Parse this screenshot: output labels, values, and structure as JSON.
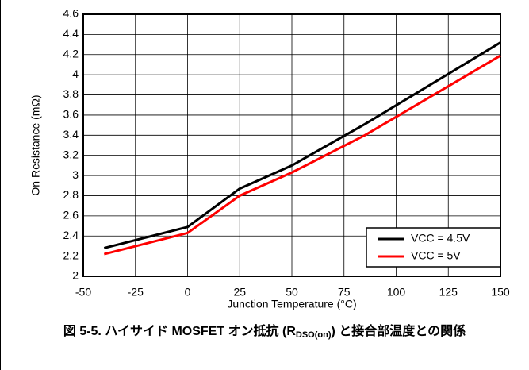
{
  "chart_data": {
    "type": "line",
    "xlabel": "Junction Temperature (°C)",
    "ylabel": "On Resistance (mΩ)",
    "xlim": [
      -50,
      150
    ],
    "xticks": [
      -50,
      -25,
      0,
      25,
      50,
      75,
      100,
      125,
      150
    ],
    "ylim": [
      2,
      4.6
    ],
    "yticks": [
      2,
      2.2,
      2.4,
      2.6,
      2.8,
      3,
      3.2,
      3.4,
      3.6,
      3.8,
      4,
      4.2,
      4.4,
      4.6
    ],
    "grid": true,
    "legend": "lower right",
    "x": [
      -40,
      0,
      25,
      50,
      85,
      150
    ],
    "series": [
      {
        "name": "VCC = 4.5V",
        "color": "#000000",
        "values": [
          2.28,
          2.49,
          2.87,
          3.1,
          3.51,
          4.32
        ]
      },
      {
        "name": "VCC = 5V",
        "color": "#ff0000",
        "values": [
          2.22,
          2.43,
          2.8,
          3.03,
          3.4,
          4.19
        ]
      }
    ]
  },
  "caption": {
    "before": "図 5-5. ハイサイド MOSFET オン抵抗 (R",
    "sub": "DSO(on)",
    "after": ") と接合部温度との関係"
  }
}
